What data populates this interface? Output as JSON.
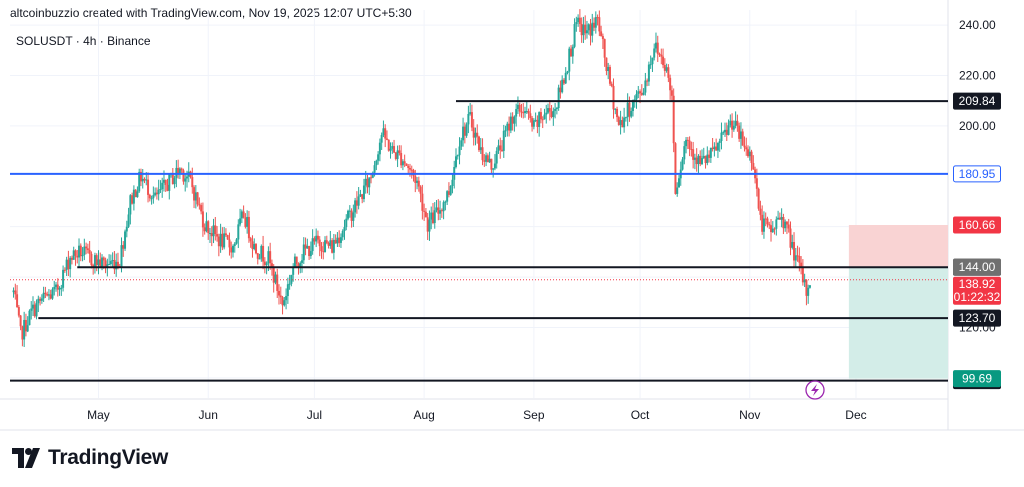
{
  "header": {
    "attribution": "altcoinbuzzio created with TradingView.com, Nov 19, 2025 12:07 UTC+5:30",
    "symbol_line": "SOLUSDT · 4h · Binance"
  },
  "brand": {
    "name": "TradingView"
  },
  "colors": {
    "up": "#26a69a",
    "down": "#ef5350",
    "blue_line": "#2962ff",
    "stop_zone": "#f9d3d3",
    "target_zone": "#d3ede8",
    "price_line": "#f23645"
  },
  "chart_data": {
    "type": "candlestick",
    "symbol": "SOLUSDT",
    "interval": "4h",
    "exchange": "Binance",
    "y_axis": {
      "ticks": [
        "240.00",
        "220.00",
        "200.00",
        "120.00"
      ],
      "range": [
        92,
        246
      ]
    },
    "x_axis": {
      "range": [
        "2025-04-06",
        "2025-12-27"
      ],
      "ticks": [
        {
          "label": "May",
          "date": "2025-05-01"
        },
        {
          "label": "Jun",
          "date": "2025-06-01"
        },
        {
          "label": "Jul",
          "date": "2025-07-01"
        },
        {
          "label": "Aug",
          "date": "2025-08-01"
        },
        {
          "label": "Sep",
          "date": "2025-09-01"
        },
        {
          "label": "Oct",
          "date": "2025-10-01"
        },
        {
          "label": "Nov",
          "date": "2025-11-01"
        },
        {
          "label": "Dec",
          "date": "2025-12-01"
        }
      ]
    },
    "price_path": [
      [
        "2025-04-07",
        134
      ],
      [
        "2025-04-09",
        117
      ],
      [
        "2025-04-12",
        126
      ],
      [
        "2025-04-15",
        131
      ],
      [
        "2025-04-19",
        134
      ],
      [
        "2025-04-23",
        148
      ],
      [
        "2025-04-26",
        150
      ],
      [
        "2025-04-29",
        147
      ],
      [
        "2025-05-03",
        145
      ],
      [
        "2025-05-07",
        147
      ],
      [
        "2025-05-10",
        170
      ],
      [
        "2025-05-13",
        180
      ],
      [
        "2025-05-17",
        171
      ],
      [
        "2025-05-21",
        178
      ],
      [
        "2025-05-24",
        183
      ],
      [
        "2025-05-27",
        178
      ],
      [
        "2025-05-31",
        161
      ],
      [
        "2025-06-04",
        155
      ],
      [
        "2025-06-08",
        152
      ],
      [
        "2025-06-11",
        165
      ],
      [
        "2025-06-14",
        152
      ],
      [
        "2025-06-18",
        147
      ],
      [
        "2025-06-22",
        129
      ],
      [
        "2025-06-25",
        144
      ],
      [
        "2025-06-28",
        150
      ],
      [
        "2025-07-02",
        154
      ],
      [
        "2025-07-06",
        152
      ],
      [
        "2025-07-10",
        162
      ],
      [
        "2025-07-14",
        172
      ],
      [
        "2025-07-17",
        180
      ],
      [
        "2025-07-20",
        197
      ],
      [
        "2025-07-23",
        190
      ],
      [
        "2025-07-26",
        187
      ],
      [
        "2025-07-30",
        178
      ],
      [
        "2025-08-02",
        161
      ],
      [
        "2025-08-05",
        166
      ],
      [
        "2025-08-08",
        174
      ],
      [
        "2025-08-11",
        195
      ],
      [
        "2025-08-14",
        203
      ],
      [
        "2025-08-17",
        190
      ],
      [
        "2025-08-20",
        184
      ],
      [
        "2025-08-23",
        193
      ],
      [
        "2025-08-26",
        204
      ],
      [
        "2025-08-29",
        207
      ],
      [
        "2025-09-01",
        199
      ],
      [
        "2025-09-04",
        205
      ],
      [
        "2025-09-07",
        207
      ],
      [
        "2025-09-10",
        222
      ],
      [
        "2025-09-13",
        240
      ],
      [
        "2025-09-16",
        237
      ],
      [
        "2025-09-19",
        242
      ],
      [
        "2025-09-22",
        220
      ],
      [
        "2025-09-25",
        200
      ],
      [
        "2025-09-28",
        207
      ],
      [
        "2025-10-02",
        215
      ],
      [
        "2025-10-05",
        232
      ],
      [
        "2025-10-08",
        225
      ],
      [
        "2025-10-10",
        212
      ],
      [
        "2025-10-11",
        175
      ],
      [
        "2025-10-14",
        195
      ],
      [
        "2025-10-18",
        185
      ],
      [
        "2025-10-21",
        188
      ],
      [
        "2025-10-24",
        194
      ],
      [
        "2025-10-27",
        202
      ],
      [
        "2025-10-30",
        193
      ],
      [
        "2025-11-02",
        186
      ],
      [
        "2025-11-04",
        162
      ],
      [
        "2025-11-07",
        158
      ],
      [
        "2025-11-10",
        165
      ],
      [
        "2025-11-13",
        152
      ],
      [
        "2025-11-16",
        139
      ],
      [
        "2025-11-17",
        134
      ],
      [
        "2025-11-18",
        139
      ]
    ],
    "horizontal_levels": [
      {
        "value": 209.84,
        "label": "209.84",
        "style": "black",
        "from": "2025-08-10"
      },
      {
        "value": 180.95,
        "label": "180.95",
        "style": "blue",
        "from": "2025-04-06"
      },
      {
        "value": 143.91,
        "label": "143.91",
        "style": "black",
        "from": "2025-04-25"
      },
      {
        "value": 123.7,
        "label": "123.70",
        "style": "black",
        "from": "2025-04-14"
      },
      {
        "value": 98.88,
        "label": "98.88",
        "style": "black",
        "from": "2025-04-06"
      }
    ],
    "position": {
      "type": "short",
      "entry": 144.0,
      "entry_label": "144.00",
      "stop": 160.66,
      "stop_label": "160.66",
      "target": 99.69,
      "target_label": "99.69",
      "start": "2025-11-29",
      "end": "2025-12-27"
    },
    "last_price": {
      "value": 138.92,
      "label": "138.92",
      "countdown": "01:22:32"
    }
  }
}
